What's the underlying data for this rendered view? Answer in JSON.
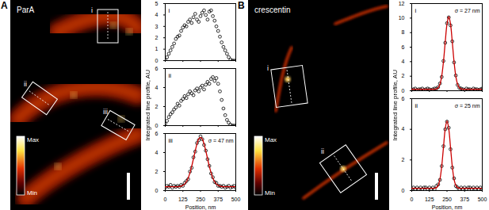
{
  "figure": {
    "panels": [
      {
        "label": "A",
        "image_title": "ParA",
        "roi_labels": [
          "i",
          "ii",
          "iii"
        ],
        "colorbar_labels": [
          "Max",
          "Min"
        ],
        "ylabel": "Integrated line profile, AU"
      },
      {
        "label": "B",
        "image_title": "crescentin",
        "roi_labels": [
          "i",
          "ii"
        ],
        "colorbar_labels": [
          "Max",
          "Min"
        ],
        "ylabel": "Integrated line profile, AU"
      }
    ]
  },
  "chart_data": [
    {
      "type": "scatter",
      "title": "i",
      "tick_labels": "y",
      "x": [
        0,
        12.5,
        25,
        37.5,
        50,
        62.5,
        75,
        87.5,
        100,
        112.5,
        125,
        137.5,
        150,
        162.5,
        175,
        187.5,
        200,
        212.5,
        225,
        237.5,
        250,
        262.5,
        275,
        287.5,
        300,
        312.5,
        325,
        337.5,
        350,
        362.5,
        375,
        387.5,
        400,
        412.5,
        425,
        437.5,
        450,
        462.5,
        475,
        487.5,
        500
      ],
      "xlim": [
        0,
        500
      ],
      "xticks": [
        0,
        125,
        250,
        375,
        500
      ],
      "ylim": [
        0,
        5
      ],
      "yticks": [
        0,
        1,
        2,
        3,
        4,
        5
      ],
      "series": [
        {
          "type": "scatter",
          "marker": "circle",
          "color": "#000000",
          "values": [
            0.1,
            0.3,
            0.6,
            0.9,
            1.2,
            1.5,
            1.9,
            2.1,
            2.2,
            2.6,
            2.9,
            3.1,
            3.0,
            3.4,
            3.6,
            3.3,
            3.8,
            4.1,
            3.6,
            3.4,
            3.9,
            4.2,
            4.4,
            4.0,
            3.6,
            4.3,
            4.4,
            3.9,
            3.5,
            3.0,
            2.6,
            2.1,
            1.6,
            1.2,
            0.9,
            0.6,
            0.3,
            0.1,
            0.0,
            0.0,
            0.0
          ]
        }
      ]
    },
    {
      "type": "scatter",
      "title": "ii",
      "tick_labels": "y",
      "x": [
        0,
        12.5,
        25,
        37.5,
        50,
        62.5,
        75,
        87.5,
        100,
        112.5,
        125,
        137.5,
        150,
        162.5,
        175,
        187.5,
        200,
        212.5,
        225,
        237.5,
        250,
        262.5,
        275,
        287.5,
        300,
        312.5,
        325,
        337.5,
        350,
        362.5,
        375,
        387.5,
        400,
        412.5,
        425,
        437.5,
        450,
        462.5,
        475,
        487.5,
        500
      ],
      "xlim": [
        0,
        500
      ],
      "xticks": [
        0,
        125,
        250,
        375,
        500
      ],
      "ylim": [
        0,
        6
      ],
      "yticks": [
        0,
        2,
        4,
        6
      ],
      "series": [
        {
          "type": "scatter",
          "marker": "circle",
          "color": "#000000",
          "values": [
            0.2,
            0.5,
            0.9,
            1.2,
            1.4,
            1.7,
            1.9,
            2.3,
            2.1,
            2.6,
            2.8,
            3.1,
            2.9,
            3.3,
            3.6,
            3.4,
            3.2,
            3.7,
            3.9,
            3.6,
            4.0,
            4.2,
            3.8,
            4.3,
            4.6,
            4.4,
            4.9,
            5.1,
            4.7,
            5.0,
            4.4,
            3.6,
            2.7,
            1.8,
            1.1,
            0.6,
            0.3,
            0.1,
            0.0,
            0.0,
            0.0
          ]
        }
      ]
    },
    {
      "type": "scatter",
      "title": "iii",
      "annotation": "σ = 47 nm",
      "xlabel": "Position, nm",
      "x": [
        0,
        12.5,
        25,
        37.5,
        50,
        62.5,
        75,
        87.5,
        100,
        112.5,
        125,
        137.5,
        150,
        162.5,
        175,
        187.5,
        200,
        212.5,
        225,
        237.5,
        250,
        262.5,
        275,
        287.5,
        300,
        312.5,
        325,
        337.5,
        350,
        362.5,
        375,
        387.5,
        400,
        412.5,
        425,
        437.5,
        450,
        462.5,
        475,
        487.5,
        500
      ],
      "xlim": [
        0,
        500
      ],
      "xticks": [
        0,
        125,
        250,
        375,
        500
      ],
      "ylim": [
        0,
        6
      ],
      "yticks": [
        0,
        2,
        4,
        6
      ],
      "series": [
        {
          "type": "scatter",
          "marker": "circle",
          "color": "#000000",
          "values": [
            0.3,
            0.5,
            0.4,
            0.6,
            0.3,
            0.5,
            0.4,
            0.5,
            0.4,
            0.6,
            0.5,
            0.8,
            1.0,
            1.2,
            2.0,
            2.4,
            3.5,
            4.1,
            5.0,
            5.3,
            5.7,
            5.4,
            4.8,
            4.2,
            3.3,
            2.6,
            1.8,
            1.4,
            0.9,
            0.8,
            0.5,
            0.5,
            0.4,
            0.5,
            0.3,
            0.4,
            0.5,
            0.3,
            0.4,
            0.5,
            0.3
          ]
        },
        {
          "type": "line",
          "line_style": "solid",
          "color": "#cc0000",
          "values": [
            0.4,
            0.4,
            0.4,
            0.4,
            0.4,
            0.4,
            0.4,
            0.4,
            0.43,
            0.47,
            0.55,
            0.7,
            0.94,
            1.32,
            1.86,
            2.55,
            3.35,
            4.18,
            4.91,
            5.42,
            5.6,
            5.42,
            4.91,
            4.18,
            3.35,
            2.55,
            1.86,
            1.32,
            0.94,
            0.7,
            0.55,
            0.47,
            0.43,
            0.4,
            0.4,
            0.4,
            0.4,
            0.4,
            0.4,
            0.4,
            0.4
          ]
        }
      ]
    },
    {
      "type": "scatter",
      "title": "i",
      "annotation": "σ = 27 nm",
      "tick_labels": "y",
      "x": [
        0,
        12.5,
        25,
        37.5,
        50,
        62.5,
        75,
        87.5,
        100,
        112.5,
        125,
        137.5,
        150,
        162.5,
        175,
        187.5,
        200,
        212.5,
        225,
        237.5,
        250,
        262.5,
        275,
        287.5,
        300,
        312.5,
        325,
        337.5,
        350,
        362.5,
        375,
        387.5,
        400,
        412.5,
        425,
        437.5,
        450,
        462.5,
        475,
        487.5,
        500
      ],
      "xlim": [
        0,
        500
      ],
      "xticks": [
        0,
        125,
        250,
        375,
        500
      ],
      "ylim": [
        0,
        12
      ],
      "yticks": [
        0,
        2,
        4,
        6,
        8,
        10,
        12
      ],
      "series": [
        {
          "type": "scatter",
          "marker": "circle",
          "color": "#000000",
          "values": [
            0.1,
            0.2,
            0.3,
            0.1,
            0.2,
            0.2,
            0.3,
            0.1,
            0.2,
            0.3,
            0.2,
            0.1,
            0.2,
            0.3,
            0.3,
            0.5,
            1.0,
            1.9,
            4.1,
            6.6,
            9.3,
            10.1,
            9.0,
            6.8,
            3.9,
            2.1,
            0.8,
            0.4,
            0.3,
            0.2,
            0.1,
            0.3,
            0.2,
            0.2,
            0.1,
            0.3,
            0.2,
            0.2,
            0.1,
            0.2,
            0.3
          ]
        },
        {
          "type": "line",
          "line_style": "solid",
          "color": "#cc0000",
          "values": [
            0.2,
            0.2,
            0.2,
            0.2,
            0.2,
            0.2,
            0.2,
            0.2,
            0.2,
            0.2,
            0.2,
            0.2,
            0.2,
            0.2,
            0.25,
            0.41,
            0.89,
            2.0,
            4.01,
            6.71,
            9.18,
            10.2,
            9.18,
            6.71,
            4.01,
            2.0,
            0.89,
            0.41,
            0.25,
            0.2,
            0.2,
            0.2,
            0.2,
            0.2,
            0.2,
            0.2,
            0.2,
            0.2,
            0.2,
            0.2,
            0.2
          ]
        }
      ]
    },
    {
      "type": "scatter",
      "title": "ii",
      "annotation": "σ = 25 nm",
      "xlabel": "Position, nm",
      "x": [
        0,
        12.5,
        25,
        37.5,
        50,
        62.5,
        75,
        87.5,
        100,
        112.5,
        125,
        137.5,
        150,
        162.5,
        175,
        187.5,
        200,
        212.5,
        225,
        237.5,
        250,
        262.5,
        275,
        287.5,
        300,
        312.5,
        325,
        337.5,
        350,
        362.5,
        375,
        387.5,
        400,
        412.5,
        425,
        437.5,
        450,
        462.5,
        475,
        487.5,
        500
      ],
      "xlim": [
        0,
        500
      ],
      "xticks": [
        0,
        125,
        250,
        375,
        500
      ],
      "ylim": [
        0,
        6
      ],
      "yticks": [
        0,
        2,
        4,
        6
      ],
      "series": [
        {
          "type": "scatter",
          "marker": "circle",
          "color": "#000000",
          "values": [
            0.1,
            0.2,
            0.1,
            0.2,
            0.1,
            0.2,
            0.1,
            0.2,
            0.2,
            0.1,
            0.2,
            0.1,
            0.2,
            0.1,
            0.3,
            0.4,
            0.7,
            1.6,
            2.9,
            4.0,
            4.5,
            4.1,
            2.7,
            1.5,
            0.8,
            0.3,
            0.2,
            0.1,
            0.2,
            0.1,
            0.2,
            0.1,
            0.2,
            0.2,
            0.1,
            0.2,
            0.1,
            0.2,
            0.1,
            0.2,
            0.1
          ]
        },
        {
          "type": "line",
          "line_style": "solid",
          "color": "#cc0000",
          "values": [
            0.15,
            0.15,
            0.15,
            0.15,
            0.15,
            0.15,
            0.15,
            0.15,
            0.15,
            0.15,
            0.15,
            0.15,
            0.15,
            0.15,
            0.2,
            0.34,
            0.74,
            1.58,
            2.82,
            4.03,
            4.55,
            4.03,
            2.82,
            1.58,
            0.74,
            0.34,
            0.2,
            0.15,
            0.15,
            0.15,
            0.15,
            0.15,
            0.15,
            0.15,
            0.15,
            0.15,
            0.15,
            0.15,
            0.15,
            0.15,
            0.15
          ]
        }
      ]
    }
  ]
}
